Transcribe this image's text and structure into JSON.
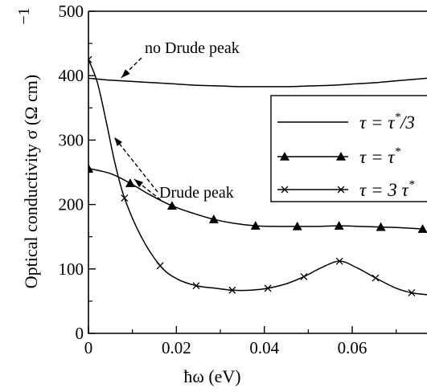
{
  "chart_data": {
    "type": "line",
    "xlabel": "ħω  (eV)",
    "ylabel": "Optical conductivity  σ  (Ω cm)",
    "ylabel_exponent": "−1",
    "xlim": [
      0,
      0.077
    ],
    "ylim": [
      0,
      500
    ],
    "xticks": [
      0,
      0.02,
      0.04,
      0.06
    ],
    "xtick_labels": [
      "0",
      "0.02",
      "0.04",
      "0.06"
    ],
    "yticks": [
      0,
      100,
      200,
      300,
      400,
      500
    ],
    "ytick_labels": [
      "0",
      "100",
      "200",
      "300",
      "400",
      "500"
    ],
    "grid": false,
    "legend_position": "right",
    "series": [
      {
        "name": "τ = τ*/3",
        "legend_base": "τ = τ",
        "legend_sup": "*",
        "legend_tail": "/3",
        "marker": "none",
        "x": [
          0,
          0.005,
          0.01,
          0.015,
          0.02,
          0.025,
          0.03,
          0.035,
          0.04,
          0.045,
          0.05,
          0.055,
          0.06,
          0.065,
          0.07,
          0.077
        ],
        "y": [
          396,
          393,
          391,
          389,
          387,
          385,
          384,
          383,
          383,
          383,
          384,
          385,
          387,
          389,
          392,
          396
        ]
      },
      {
        "name": "τ = τ*",
        "legend_base": "τ = τ",
        "legend_sup": "*",
        "legend_tail": "",
        "marker": "triangle",
        "x": [
          0,
          0.005,
          0.0095,
          0.014,
          0.019,
          0.024,
          0.0285,
          0.033,
          0.038,
          0.043,
          0.0475,
          0.052,
          0.057,
          0.062,
          0.0665,
          0.071,
          0.076
        ],
        "y": [
          256,
          248,
          233,
          215,
          198,
          186,
          177,
          171,
          167,
          166,
          166,
          166,
          167,
          166,
          165,
          164,
          162
        ],
        "marker_x": [
          0,
          0.0095,
          0.019,
          0.0285,
          0.038,
          0.0475,
          0.057,
          0.0665,
          0.076
        ],
        "marker_y": [
          256,
          233,
          198,
          177,
          167,
          166,
          167,
          165,
          162
        ]
      },
      {
        "name": "τ = 3 τ*",
        "legend_base": "τ = 3 τ",
        "legend_sup": "*",
        "legend_tail": "",
        "marker": "x",
        "x": [
          0,
          0.002,
          0.004,
          0.006,
          0.0082,
          0.012,
          0.0163,
          0.02,
          0.0245,
          0.029,
          0.0327,
          0.037,
          0.0408,
          0.045,
          0.049,
          0.053,
          0.0571,
          0.061,
          0.0653,
          0.07,
          0.0735,
          0.077
        ],
        "y": [
          425,
          390,
          330,
          265,
          210,
          150,
          105,
          85,
          74,
          70,
          67,
          67,
          70,
          77,
          88,
          102,
          112,
          102,
          86,
          70,
          63,
          60
        ],
        "marker_x": [
          0,
          0.0082,
          0.0163,
          0.0245,
          0.0327,
          0.0408,
          0.049,
          0.0571,
          0.0653,
          0.0735
        ],
        "marker_y": [
          425,
          210,
          105,
          74,
          67,
          70,
          88,
          112,
          86,
          63
        ]
      }
    ],
    "annotations": [
      {
        "text": "no Drude peak",
        "arrow_to": [
          0.002,
          393
        ]
      },
      {
        "text": "Drude peak",
        "arrow_to": [
          [
            0.0055,
            307
          ],
          [
            0.0095,
            233
          ]
        ]
      }
    ]
  }
}
